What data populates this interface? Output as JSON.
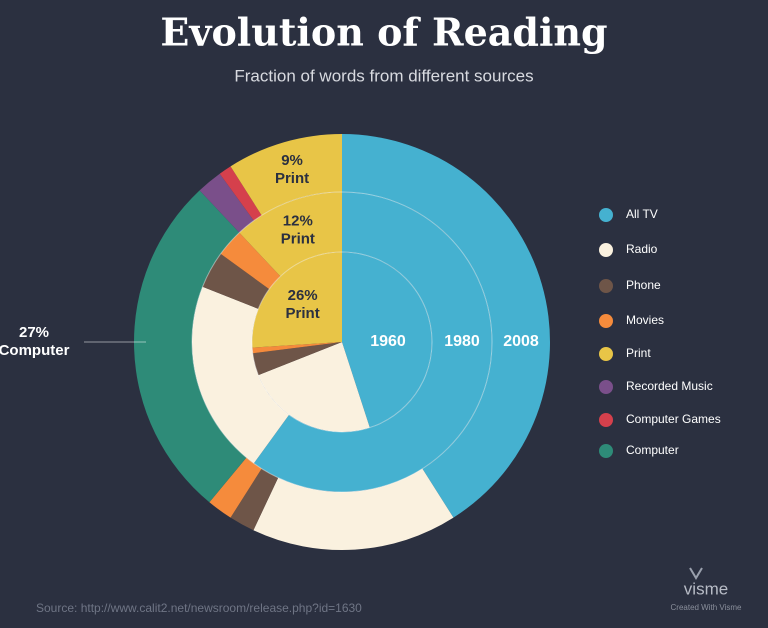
{
  "chart_data": {
    "type": "pie",
    "title": "Evolution of Reading",
    "subtitle": "Fraction of words from different sources",
    "categories": [
      "All TV",
      "Radio",
      "Phone",
      "Movies",
      "Print",
      "Recorded Music",
      "Computer Games",
      "Computer"
    ],
    "colors": [
      "#45b1d0",
      "#faf1df",
      "#6e5548",
      "#f58b3c",
      "#e8c547",
      "#7a4f8a",
      "#d5404c",
      "#2e8b78"
    ],
    "series": [
      {
        "name": "1960",
        "values": [
          45,
          24,
          4,
          1,
          26,
          null,
          null,
          null
        ],
        "value_labels": [
          null,
          null,
          null,
          null,
          "26%",
          null,
          null,
          null
        ]
      },
      {
        "name": "1980",
        "values": [
          60,
          21,
          4,
          3,
          12,
          null,
          null,
          null
        ],
        "value_labels": [
          null,
          null,
          null,
          null,
          "12%",
          null,
          null,
          null
        ]
      },
      {
        "name": "2008",
        "values": [
          41,
          16,
          2,
          2,
          9,
          2,
          1,
          27
        ],
        "value_labels": [
          null,
          null,
          null,
          null,
          "9%",
          null,
          null,
          "27%"
        ]
      }
    ],
    "source": "Source: http://www.calit2.net/newsroom/release.php?id=1630",
    "brand": "visme",
    "brand_note": "Created With Visme"
  }
}
